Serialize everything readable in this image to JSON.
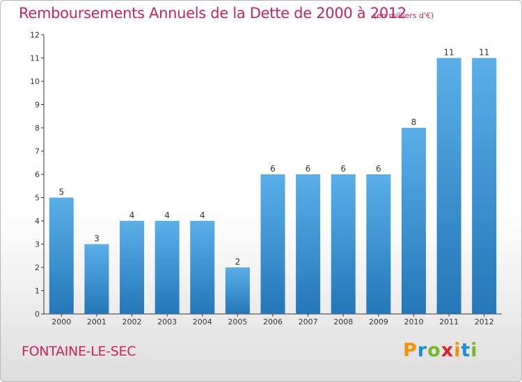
{
  "header": {
    "title": "Remboursements Annuels de la Dette de 2000 à 2012",
    "unit": "(en milliers d'€)"
  },
  "footer": {
    "place": "FONTAINE-LE-SEC",
    "logo_letters": [
      "P",
      "r",
      "o",
      "x",
      "i",
      "t",
      "i"
    ],
    "logo_colors": [
      "#f29400",
      "#1e8fd6",
      "#7ab62a",
      "#d9262b",
      "#f29400",
      "#1e8fd6",
      "#7ab62a"
    ]
  },
  "colors": {
    "bar_top": "#5aafe8",
    "bar_bottom": "#2577b8",
    "axis": "#333333",
    "label": "#333333"
  },
  "chart_data": {
    "type": "bar",
    "categories": [
      "2000",
      "2001",
      "2002",
      "2003",
      "2004",
      "2005",
      "2006",
      "2007",
      "2008",
      "2009",
      "2010",
      "2011",
      "2012"
    ],
    "values": [
      5,
      3,
      4,
      4,
      4,
      2,
      6,
      6,
      6,
      6,
      8,
      11,
      11
    ],
    "title": "Remboursements Annuels de la Dette de 2000 à 2012",
    "xlabel": "",
    "ylabel": "",
    "ylim": [
      0,
      12
    ],
    "yticks": [
      0,
      1,
      2,
      3,
      4,
      5,
      6,
      7,
      8,
      9,
      10,
      11,
      12
    ],
    "grid": false,
    "data_labels": true
  }
}
